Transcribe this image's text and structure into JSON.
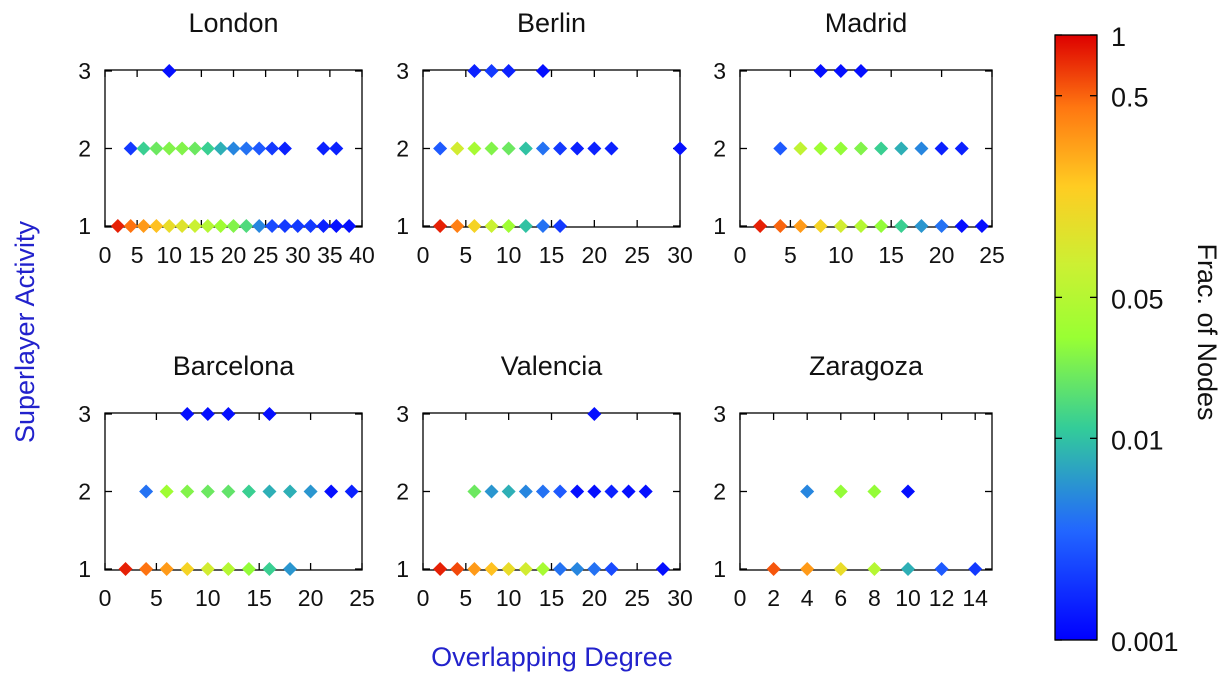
{
  "chart_data": {
    "type": "scatter",
    "ylabel": "Superlayer Activity",
    "xlabel": "Overlapping Degree",
    "colorbar": {
      "label": "Frac. of Nodes",
      "scale": "log",
      "range": [
        0.001,
        1
      ],
      "ticks": [
        1,
        0.5,
        0.05,
        0.01,
        0.001
      ],
      "tick_labels": [
        "1",
        "0.5",
        "0.05",
        "0.01",
        "0.001"
      ],
      "colormap": "jet"
    },
    "panels": [
      {
        "title": "London",
        "xlim": [
          0,
          40
        ],
        "xticks": [
          0,
          5,
          10,
          15,
          20,
          25,
          30,
          35,
          40
        ],
        "ylim": [
          1,
          3
        ],
        "yticks": [
          1,
          2,
          3
        ],
        "points": [
          {
            "x": 10,
            "y": 3,
            "c": 0.0012
          },
          {
            "x": 4,
            "y": 2,
            "c": 0.002
          },
          {
            "x": 6,
            "y": 2,
            "c": 0.012
          },
          {
            "x": 8,
            "y": 2,
            "c": 0.02
          },
          {
            "x": 10,
            "y": 2,
            "c": 0.025
          },
          {
            "x": 12,
            "y": 2,
            "c": 0.025
          },
          {
            "x": 14,
            "y": 2,
            "c": 0.02
          },
          {
            "x": 16,
            "y": 2,
            "c": 0.012
          },
          {
            "x": 18,
            "y": 2,
            "c": 0.008
          },
          {
            "x": 20,
            "y": 2,
            "c": 0.005
          },
          {
            "x": 22,
            "y": 2,
            "c": 0.004
          },
          {
            "x": 24,
            "y": 2,
            "c": 0.003
          },
          {
            "x": 26,
            "y": 2,
            "c": 0.002
          },
          {
            "x": 28,
            "y": 2,
            "c": 0.0015
          },
          {
            "x": 34,
            "y": 2,
            "c": 0.0015
          },
          {
            "x": 36,
            "y": 2,
            "c": 0.0015
          },
          {
            "x": 2,
            "y": 1,
            "c": 0.8
          },
          {
            "x": 4,
            "y": 1,
            "c": 0.45
          },
          {
            "x": 6,
            "y": 1,
            "c": 0.3
          },
          {
            "x": 8,
            "y": 1,
            "c": 0.2
          },
          {
            "x": 10,
            "y": 1,
            "c": 0.12
          },
          {
            "x": 12,
            "y": 1,
            "c": 0.1
          },
          {
            "x": 14,
            "y": 1,
            "c": 0.07
          },
          {
            "x": 16,
            "y": 1,
            "c": 0.05
          },
          {
            "x": 18,
            "y": 1,
            "c": 0.035
          },
          {
            "x": 20,
            "y": 1,
            "c": 0.025
          },
          {
            "x": 22,
            "y": 1,
            "c": 0.015
          },
          {
            "x": 24,
            "y": 1,
            "c": 0.005
          },
          {
            "x": 26,
            "y": 1,
            "c": 0.0025
          },
          {
            "x": 28,
            "y": 1,
            "c": 0.002
          },
          {
            "x": 30,
            "y": 1,
            "c": 0.002
          },
          {
            "x": 32,
            "y": 1,
            "c": 0.002
          },
          {
            "x": 34,
            "y": 1,
            "c": 0.0015
          },
          {
            "x": 36,
            "y": 1,
            "c": 0.0012
          },
          {
            "x": 38,
            "y": 1,
            "c": 0.0012
          }
        ]
      },
      {
        "title": "Berlin",
        "xlim": [
          0,
          30
        ],
        "xticks": [
          0,
          5,
          10,
          15,
          20,
          25,
          30
        ],
        "ylim": [
          1,
          3
        ],
        "yticks": [
          1,
          2,
          3
        ],
        "points": [
          {
            "x": 6,
            "y": 3,
            "c": 0.0015
          },
          {
            "x": 8,
            "y": 3,
            "c": 0.002
          },
          {
            "x": 10,
            "y": 3,
            "c": 0.0015
          },
          {
            "x": 14,
            "y": 3,
            "c": 0.0012
          },
          {
            "x": 2,
            "y": 2,
            "c": 0.003
          },
          {
            "x": 4,
            "y": 2,
            "c": 0.08
          },
          {
            "x": 6,
            "y": 2,
            "c": 0.04
          },
          {
            "x": 8,
            "y": 2,
            "c": 0.025
          },
          {
            "x": 10,
            "y": 2,
            "c": 0.02
          },
          {
            "x": 12,
            "y": 2,
            "c": 0.01
          },
          {
            "x": 14,
            "y": 2,
            "c": 0.004
          },
          {
            "x": 16,
            "y": 2,
            "c": 0.002
          },
          {
            "x": 18,
            "y": 2,
            "c": 0.0015
          },
          {
            "x": 20,
            "y": 2,
            "c": 0.0015
          },
          {
            "x": 22,
            "y": 2,
            "c": 0.0015
          },
          {
            "x": 30,
            "y": 2,
            "c": 0.0012
          },
          {
            "x": 2,
            "y": 1,
            "c": 0.8
          },
          {
            "x": 4,
            "y": 1,
            "c": 0.4
          },
          {
            "x": 6,
            "y": 1,
            "c": 0.15
          },
          {
            "x": 8,
            "y": 1,
            "c": 0.07
          },
          {
            "x": 10,
            "y": 1,
            "c": 0.035
          },
          {
            "x": 12,
            "y": 1,
            "c": 0.01
          },
          {
            "x": 14,
            "y": 1,
            "c": 0.004
          },
          {
            "x": 16,
            "y": 1,
            "c": 0.002
          }
        ]
      },
      {
        "title": "Madrid",
        "xlim": [
          0,
          25
        ],
        "xticks": [
          0,
          5,
          10,
          15,
          20,
          25
        ],
        "ylim": [
          1,
          3
        ],
        "yticks": [
          1,
          2,
          3
        ],
        "points": [
          {
            "x": 8,
            "y": 3,
            "c": 0.0012
          },
          {
            "x": 10,
            "y": 3,
            "c": 0.0012
          },
          {
            "x": 12,
            "y": 3,
            "c": 0.0012
          },
          {
            "x": 4,
            "y": 2,
            "c": 0.003
          },
          {
            "x": 6,
            "y": 2,
            "c": 0.06
          },
          {
            "x": 8,
            "y": 2,
            "c": 0.035
          },
          {
            "x": 10,
            "y": 2,
            "c": 0.03
          },
          {
            "x": 12,
            "y": 2,
            "c": 0.025
          },
          {
            "x": 14,
            "y": 2,
            "c": 0.012
          },
          {
            "x": 16,
            "y": 2,
            "c": 0.008
          },
          {
            "x": 18,
            "y": 2,
            "c": 0.005
          },
          {
            "x": 20,
            "y": 2,
            "c": 0.0015
          },
          {
            "x": 22,
            "y": 2,
            "c": 0.0015
          },
          {
            "x": 2,
            "y": 1,
            "c": 0.8
          },
          {
            "x": 4,
            "y": 1,
            "c": 0.5
          },
          {
            "x": 6,
            "y": 1,
            "c": 0.3
          },
          {
            "x": 8,
            "y": 1,
            "c": 0.15
          },
          {
            "x": 10,
            "y": 1,
            "c": 0.08
          },
          {
            "x": 12,
            "y": 1,
            "c": 0.05
          },
          {
            "x": 14,
            "y": 1,
            "c": 0.03
          },
          {
            "x": 16,
            "y": 1,
            "c": 0.012
          },
          {
            "x": 18,
            "y": 1,
            "c": 0.006
          },
          {
            "x": 20,
            "y": 1,
            "c": 0.004
          },
          {
            "x": 22,
            "y": 1,
            "c": 0.0012
          },
          {
            "x": 24,
            "y": 1,
            "c": 0.0012
          }
        ]
      },
      {
        "title": "Barcelona",
        "xlim": [
          0,
          25
        ],
        "xticks": [
          0,
          5,
          10,
          15,
          20,
          25
        ],
        "ylim": [
          1,
          3
        ],
        "yticks": [
          1,
          2,
          3
        ],
        "points": [
          {
            "x": 8,
            "y": 3,
            "c": 0.0012
          },
          {
            "x": 10,
            "y": 3,
            "c": 0.0012
          },
          {
            "x": 12,
            "y": 3,
            "c": 0.0012
          },
          {
            "x": 16,
            "y": 3,
            "c": 0.0012
          },
          {
            "x": 4,
            "y": 2,
            "c": 0.004
          },
          {
            "x": 6,
            "y": 2,
            "c": 0.035
          },
          {
            "x": 8,
            "y": 2,
            "c": 0.025
          },
          {
            "x": 10,
            "y": 2,
            "c": 0.02
          },
          {
            "x": 12,
            "y": 2,
            "c": 0.018
          },
          {
            "x": 14,
            "y": 2,
            "c": 0.012
          },
          {
            "x": 16,
            "y": 2,
            "c": 0.008
          },
          {
            "x": 18,
            "y": 2,
            "c": 0.008
          },
          {
            "x": 20,
            "y": 2,
            "c": 0.006
          },
          {
            "x": 22,
            "y": 2,
            "c": 0.0012
          },
          {
            "x": 24,
            "y": 2,
            "c": 0.0015
          },
          {
            "x": 2,
            "y": 1,
            "c": 0.8
          },
          {
            "x": 4,
            "y": 1,
            "c": 0.45
          },
          {
            "x": 6,
            "y": 1,
            "c": 0.3
          },
          {
            "x": 8,
            "y": 1,
            "c": 0.15
          },
          {
            "x": 10,
            "y": 1,
            "c": 0.08
          },
          {
            "x": 12,
            "y": 1,
            "c": 0.05
          },
          {
            "x": 14,
            "y": 1,
            "c": 0.03
          },
          {
            "x": 16,
            "y": 1,
            "c": 0.012
          },
          {
            "x": 18,
            "y": 1,
            "c": 0.006
          }
        ]
      },
      {
        "title": "Valencia",
        "xlim": [
          0,
          30
        ],
        "xticks": [
          0,
          5,
          10,
          15,
          20,
          25,
          30
        ],
        "ylim": [
          1,
          3
        ],
        "yticks": [
          1,
          2,
          3
        ],
        "points": [
          {
            "x": 20,
            "y": 3,
            "c": 0.0012
          },
          {
            "x": 6,
            "y": 2,
            "c": 0.02
          },
          {
            "x": 8,
            "y": 2,
            "c": 0.006
          },
          {
            "x": 10,
            "y": 2,
            "c": 0.008
          },
          {
            "x": 12,
            "y": 2,
            "c": 0.005
          },
          {
            "x": 14,
            "y": 2,
            "c": 0.004
          },
          {
            "x": 16,
            "y": 2,
            "c": 0.003
          },
          {
            "x": 18,
            "y": 2,
            "c": 0.0012
          },
          {
            "x": 20,
            "y": 2,
            "c": 0.0012
          },
          {
            "x": 22,
            "y": 2,
            "c": 0.0015
          },
          {
            "x": 24,
            "y": 2,
            "c": 0.0012
          },
          {
            "x": 26,
            "y": 2,
            "c": 0.0012
          },
          {
            "x": 2,
            "y": 1,
            "c": 0.8
          },
          {
            "x": 4,
            "y": 1,
            "c": 0.6
          },
          {
            "x": 6,
            "y": 1,
            "c": 0.3
          },
          {
            "x": 8,
            "y": 1,
            "c": 0.2
          },
          {
            "x": 10,
            "y": 1,
            "c": 0.12
          },
          {
            "x": 12,
            "y": 1,
            "c": 0.08
          },
          {
            "x": 14,
            "y": 1,
            "c": 0.04
          },
          {
            "x": 16,
            "y": 1,
            "c": 0.004
          },
          {
            "x": 18,
            "y": 1,
            "c": 0.005
          },
          {
            "x": 20,
            "y": 1,
            "c": 0.004
          },
          {
            "x": 22,
            "y": 1,
            "c": 0.0025
          },
          {
            "x": 28,
            "y": 1,
            "c": 0.0012
          }
        ]
      },
      {
        "title": "Zaragoza",
        "xlim": [
          0,
          15
        ],
        "xticks": [
          0,
          2,
          4,
          6,
          8,
          10,
          12,
          14
        ],
        "ylim": [
          1,
          3
        ],
        "yticks": [
          1,
          2,
          3
        ],
        "points": [
          {
            "x": 4,
            "y": 2,
            "c": 0.005
          },
          {
            "x": 6,
            "y": 2,
            "c": 0.03
          },
          {
            "x": 8,
            "y": 2,
            "c": 0.03
          },
          {
            "x": 10,
            "y": 2,
            "c": 0.0012
          },
          {
            "x": 2,
            "y": 1,
            "c": 0.55
          },
          {
            "x": 4,
            "y": 1,
            "c": 0.3
          },
          {
            "x": 6,
            "y": 1,
            "c": 0.12
          },
          {
            "x": 8,
            "y": 1,
            "c": 0.05
          },
          {
            "x": 10,
            "y": 1,
            "c": 0.008
          },
          {
            "x": 12,
            "y": 1,
            "c": 0.003
          },
          {
            "x": 14,
            "y": 1,
            "c": 0.002
          }
        ]
      }
    ]
  }
}
